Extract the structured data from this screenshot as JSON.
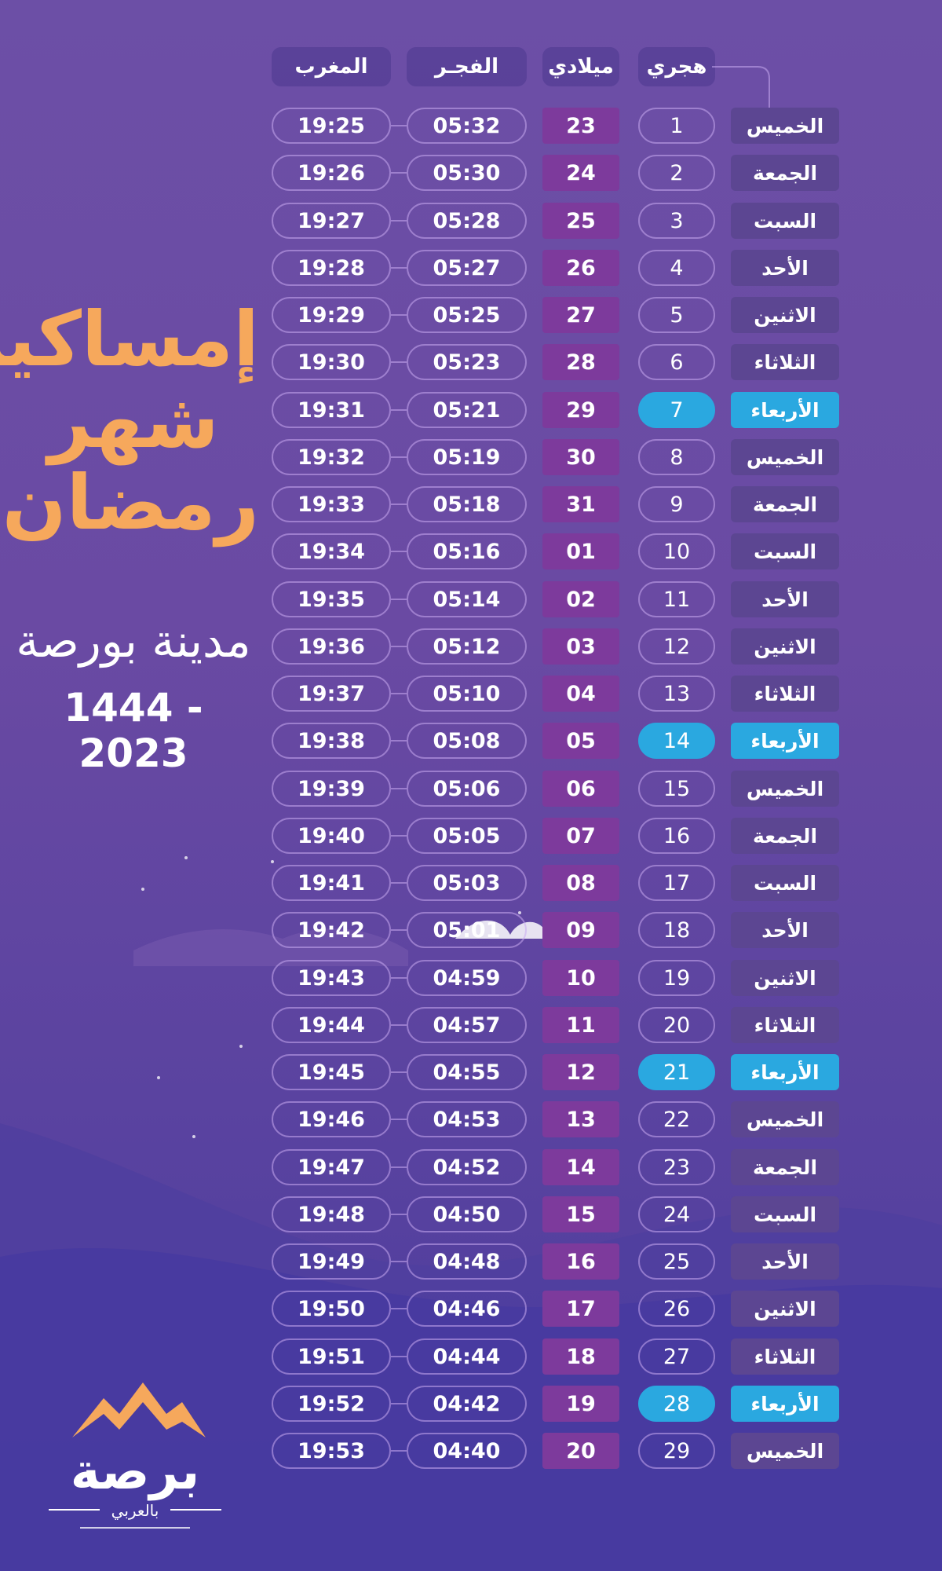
{
  "headers": {
    "maghrib": "المغرب",
    "fajr": "الفجـر",
    "gregorian": "ميلادي",
    "hijri": "هجري"
  },
  "title": {
    "line1": "إمساكية",
    "line2": "شهر",
    "line3": "رمضان",
    "city": "مدينة بورصة",
    "years": "1444 - 2023"
  },
  "logo": {
    "main": "برصة",
    "sub": "بالعربي"
  },
  "colors": {
    "accent": "#2aa8e0",
    "title": "#f6a85c",
    "gregorian_bg": "#7d3a9c"
  },
  "rows": [
    {
      "day": "الخميس",
      "hijri": "1",
      "greg": "23",
      "fajr": "05:32",
      "maghrib": "19:25",
      "hl": false
    },
    {
      "day": "الجمعة",
      "hijri": "2",
      "greg": "24",
      "fajr": "05:30",
      "maghrib": "19:26",
      "hl": false
    },
    {
      "day": "السبت",
      "hijri": "3",
      "greg": "25",
      "fajr": "05:28",
      "maghrib": "19:27",
      "hl": false
    },
    {
      "day": "الأحد",
      "hijri": "4",
      "greg": "26",
      "fajr": "05:27",
      "maghrib": "19:28",
      "hl": false
    },
    {
      "day": "الاثنين",
      "hijri": "5",
      "greg": "27",
      "fajr": "05:25",
      "maghrib": "19:29",
      "hl": false
    },
    {
      "day": "الثلاثاء",
      "hijri": "6",
      "greg": "28",
      "fajr": "05:23",
      "maghrib": "19:30",
      "hl": false
    },
    {
      "day": "الأربعاء",
      "hijri": "7",
      "greg": "29",
      "fajr": "05:21",
      "maghrib": "19:31",
      "hl": true
    },
    {
      "day": "الخميس",
      "hijri": "8",
      "greg": "30",
      "fajr": "05:19",
      "maghrib": "19:32",
      "hl": false
    },
    {
      "day": "الجمعة",
      "hijri": "9",
      "greg": "31",
      "fajr": "05:18",
      "maghrib": "19:33",
      "hl": false
    },
    {
      "day": "السبت",
      "hijri": "10",
      "greg": "01",
      "fajr": "05:16",
      "maghrib": "19:34",
      "hl": false
    },
    {
      "day": "الأحد",
      "hijri": "11",
      "greg": "02",
      "fajr": "05:14",
      "maghrib": "19:35",
      "hl": false
    },
    {
      "day": "الاثنين",
      "hijri": "12",
      "greg": "03",
      "fajr": "05:12",
      "maghrib": "19:36",
      "hl": false
    },
    {
      "day": "الثلاثاء",
      "hijri": "13",
      "greg": "04",
      "fajr": "05:10",
      "maghrib": "19:37",
      "hl": false
    },
    {
      "day": "الأربعاء",
      "hijri": "14",
      "greg": "05",
      "fajr": "05:08",
      "maghrib": "19:38",
      "hl": true
    },
    {
      "day": "الخميس",
      "hijri": "15",
      "greg": "06",
      "fajr": "05:06",
      "maghrib": "19:39",
      "hl": false
    },
    {
      "day": "الجمعة",
      "hijri": "16",
      "greg": "07",
      "fajr": "05:05",
      "maghrib": "19:40",
      "hl": false
    },
    {
      "day": "السبت",
      "hijri": "17",
      "greg": "08",
      "fajr": "05:03",
      "maghrib": "19:41",
      "hl": false
    },
    {
      "day": "الأحد",
      "hijri": "18",
      "greg": "09",
      "fajr": "05:01",
      "maghrib": "19:42",
      "hl": false
    },
    {
      "day": "الاثنين",
      "hijri": "19",
      "greg": "10",
      "fajr": "04:59",
      "maghrib": "19:43",
      "hl": false
    },
    {
      "day": "الثلاثاء",
      "hijri": "20",
      "greg": "11",
      "fajr": "04:57",
      "maghrib": "19:44",
      "hl": false
    },
    {
      "day": "الأربعاء",
      "hijri": "21",
      "greg": "12",
      "fajr": "04:55",
      "maghrib": "19:45",
      "hl": true
    },
    {
      "day": "الخميس",
      "hijri": "22",
      "greg": "13",
      "fajr": "04:53",
      "maghrib": "19:46",
      "hl": false
    },
    {
      "day": "الجمعة",
      "hijri": "23",
      "greg": "14",
      "fajr": "04:52",
      "maghrib": "19:47",
      "hl": false
    },
    {
      "day": "السبت",
      "hijri": "24",
      "greg": "15",
      "fajr": "04:50",
      "maghrib": "19:48",
      "hl": false
    },
    {
      "day": "الأحد",
      "hijri": "25",
      "greg": "16",
      "fajr": "04:48",
      "maghrib": "19:49",
      "hl": false
    },
    {
      "day": "الاثنين",
      "hijri": "26",
      "greg": "17",
      "fajr": "04:46",
      "maghrib": "19:50",
      "hl": false
    },
    {
      "day": "الثلاثاء",
      "hijri": "27",
      "greg": "18",
      "fajr": "04:44",
      "maghrib": "19:51",
      "hl": false
    },
    {
      "day": "الأربعاء",
      "hijri": "28",
      "greg": "19",
      "fajr": "04:42",
      "maghrib": "19:52",
      "hl": true
    },
    {
      "day": "الخميس",
      "hijri": "29",
      "greg": "20",
      "fajr": "04:40",
      "maghrib": "19:53",
      "hl": false
    }
  ]
}
